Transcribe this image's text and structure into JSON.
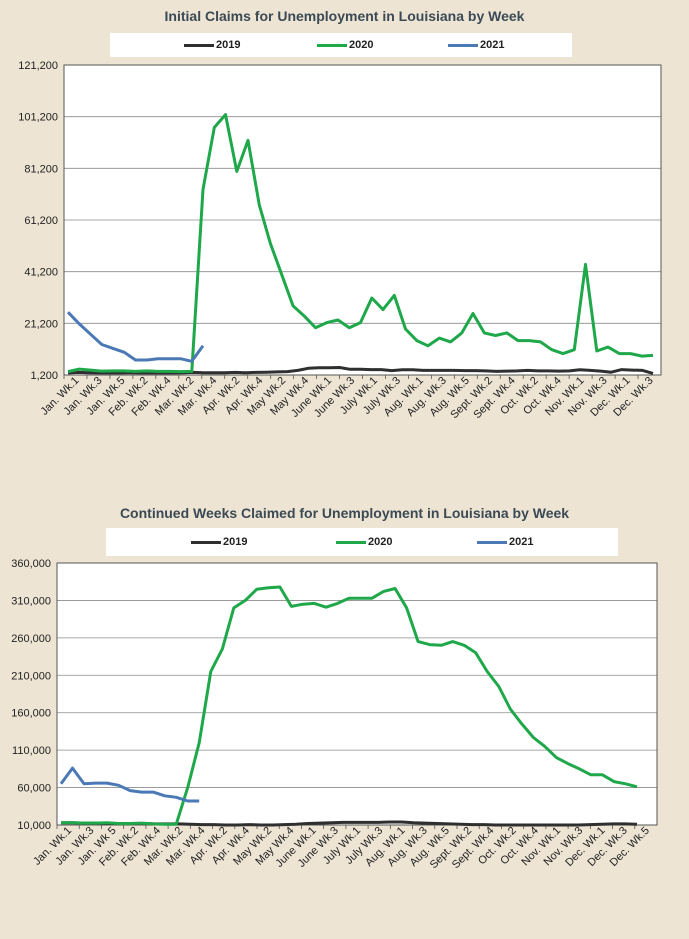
{
  "colors": {
    "2019": "#2f2f2f",
    "2020": "#1ea84a",
    "2021": "#4a79b5"
  },
  "chart_data": [
    {
      "type": "line",
      "title": "Initial Claims for Unemployment  in Louisiana by Week",
      "legend": [
        "2019",
        "2020",
        "2021"
      ],
      "y_ticks": [
        "121,200",
        "101,200",
        "81,200",
        "61,200",
        "41,200",
        "21,200",
        "1,200"
      ],
      "ylim": [
        1200,
        121200
      ],
      "x_tick_labels": [
        "Jan. Wk.1",
        "Jan. Wk.3",
        "Jan. Wk.5",
        "Feb. Wk.2",
        "Feb. Wk.4",
        "Mar. Wk.2",
        "Mar. Wk.4",
        "Apr. Wk.2",
        "Apr. Wk.4",
        "May Wk.2",
        "May Wk.4",
        "June Wk.1",
        "June Wk.3",
        "July Wk.1",
        "July Wk.3",
        "Aug. Wk.1",
        "Aug. Wk.3",
        "Aug. Wk.5",
        "Sept. Wk.2",
        "Sept. Wk.4",
        "Oct. Wk.2",
        "Oct. Wk.4",
        "Nov. Wk.1",
        "Nov. Wk.3",
        "Dec. Wk.1",
        "Dec. Wk.3"
      ],
      "series": [
        {
          "name": "2019",
          "values": [
            2000,
            2200,
            2100,
            2000,
            2100,
            2000,
            2100,
            2000,
            2000,
            2100,
            2000,
            2100,
            2200,
            2100,
            2100,
            2100,
            2200,
            2100,
            2200,
            2300,
            2400,
            2500,
            3000,
            3800,
            4000,
            4000,
            4100,
            3400,
            3400,
            3300,
            3300,
            2900,
            3200,
            3200,
            3000,
            3000,
            3000,
            3000,
            2900,
            2900,
            2800,
            2600,
            2700,
            2800,
            3000,
            2800,
            2800,
            2700,
            2800,
            3200,
            3000,
            2700,
            2300,
            3300,
            3100,
            3000,
            1800
          ]
        },
        {
          "name": "2020",
          "values": [
            2500,
            3500,
            3100,
            2700,
            2800,
            2800,
            2600,
            2800,
            2600,
            2600,
            2500,
            2600,
            73000,
            97000,
            102000,
            80000,
            92000,
            67000,
            52000,
            40000,
            28000,
            24000,
            19500,
            21500,
            22500,
            19500,
            21500,
            31000,
            26500,
            32000,
            19000,
            14500,
            12500,
            15500,
            14000,
            17500,
            25000,
            17500,
            16500,
            17500,
            14500,
            14500,
            14000,
            11000,
            9500,
            11000,
            44000,
            10500,
            12000,
            9500,
            9500,
            8500,
            8800
          ]
        },
        {
          "name": "2021",
          "values": [
            25500,
            21000,
            17000,
            13000,
            11500,
            10000,
            7000,
            7000,
            7500,
            7500,
            7500,
            6500,
            12500
          ]
        }
      ]
    },
    {
      "type": "line",
      "title": "Continued Weeks Claimed for Unemployment  in Louisiana by Week",
      "legend": [
        "2019",
        "2020",
        "2021"
      ],
      "y_ticks": [
        "360,000",
        "310,000",
        "260,000",
        "210,000",
        "160,000",
        "110,000",
        "60,000",
        "10,000"
      ],
      "ylim": [
        10000,
        360000
      ],
      "x_tick_labels": [
        "Jan. Wk.1",
        "Jan. Wk.3",
        "Jan. Wk 5",
        "Feb. Wk.2",
        "Feb. Wk.4",
        "Mar. Wk.2",
        "Mar. Wk.4",
        "Apr. Wk.2",
        "Apr. Wk.4",
        "May Wk.2",
        "May Wk.4",
        "June Wk.1",
        "June Wk.3",
        "July Wk.1",
        "July Wk.3",
        "Aug. Wk.1",
        "Aug. Wk.3",
        "Aug. Wk.5",
        "Sept. Wk.2",
        "Sept. Wk.4",
        "Oct. Wk.2",
        "Oct. Wk.4",
        "Nov. Wk.1",
        "Nov. Wk.3",
        "Dec. Wk.1",
        "Dec. Wk.3",
        "Dec. Wk.5"
      ],
      "series": [
        {
          "name": "2019",
          "values": [
            13000,
            13000,
            12500,
            12500,
            12000,
            12000,
            12000,
            12000,
            11500,
            11500,
            11500,
            11000,
            10500,
            10500,
            10000,
            10000,
            10500,
            10000,
            10000,
            10500,
            11000,
            12000,
            12500,
            13000,
            13500,
            13500,
            13500,
            13500,
            14000,
            14000,
            13000,
            12500,
            12000,
            11500,
            11000,
            10500,
            10500,
            10000,
            10000,
            10000,
            10000,
            10000,
            10000,
            10000,
            10000,
            10500,
            11000,
            11500,
            11500,
            11000
          ]
        },
        {
          "name": "2020",
          "values": [
            13000,
            13000,
            12500,
            12500,
            13000,
            12000,
            12000,
            12500,
            11500,
            11000,
            11000,
            60000,
            120000,
            215000,
            245000,
            300000,
            310000,
            325000,
            327000,
            328000,
            302000,
            305000,
            306000,
            301000,
            306000,
            313000,
            313000,
            313000,
            322000,
            326000,
            300000,
            255000,
            251000,
            250000,
            255000,
            250000,
            240000,
            215000,
            195000,
            165000,
            145000,
            127000,
            115000,
            100000,
            92000,
            85000,
            77000,
            77000,
            68000,
            65000,
            61000
          ]
        },
        {
          "name": "2021",
          "values": [
            65000,
            86000,
            65000,
            66000,
            66000,
            63000,
            56000,
            54000,
            54000,
            49000,
            47000,
            42000,
            42000
          ]
        }
      ]
    }
  ]
}
